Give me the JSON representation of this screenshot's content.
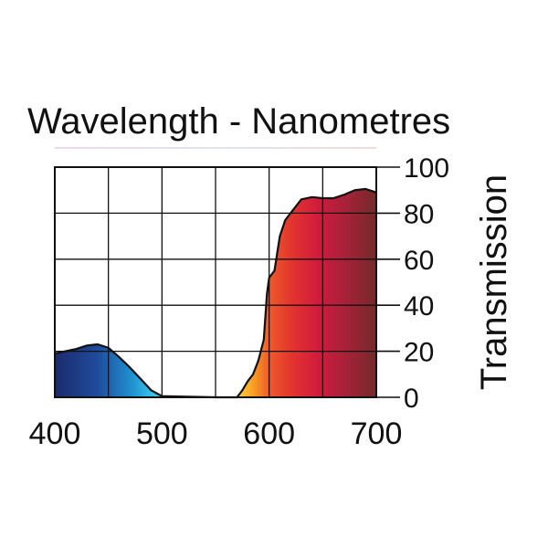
{
  "chart_data": {
    "type": "area",
    "title": "Wavelength - Nanometres",
    "xlabel": "",
    "ylabel": "Transmission",
    "xlim": [
      400,
      700
    ],
    "ylim": [
      0,
      100
    ],
    "x_ticks": [
      400,
      500,
      600,
      700
    ],
    "y_ticks": [
      0,
      20,
      40,
      60,
      80,
      100
    ],
    "grid": true,
    "series": [
      {
        "name": "Transmission",
        "x": [
          400,
          410,
          420,
          430,
          440,
          450,
          460,
          470,
          480,
          490,
          500,
          550,
          570,
          575,
          580,
          585,
          590,
          595,
          598,
          600,
          605,
          610,
          615,
          620,
          630,
          640,
          650,
          660,
          670,
          680,
          690,
          700
        ],
        "y": [
          19,
          20,
          21,
          22.5,
          23,
          21.5,
          17.5,
          13,
          8,
          3,
          0.5,
          0,
          0,
          3,
          7,
          10,
          16,
          25,
          45,
          52,
          55,
          70,
          77,
          80,
          86,
          87,
          86.5,
          86.5,
          88,
          90,
          90.5,
          89
        ]
      }
    ],
    "gradient_stops": [
      {
        "x": 400,
        "color": "#1c2a6c"
      },
      {
        "x": 440,
        "color": "#1f4c9c"
      },
      {
        "x": 470,
        "color": "#1f8ccc"
      },
      {
        "x": 490,
        "color": "#35c0ec"
      },
      {
        "x": 570,
        "color": "#ffd43a"
      },
      {
        "x": 585,
        "color": "#f8a024"
      },
      {
        "x": 600,
        "color": "#ee5a2a"
      },
      {
        "x": 620,
        "color": "#e3362e"
      },
      {
        "x": 645,
        "color": "#d11b3c"
      },
      {
        "x": 670,
        "color": "#a92138"
      },
      {
        "x": 700,
        "color": "#732a2a"
      }
    ]
  }
}
